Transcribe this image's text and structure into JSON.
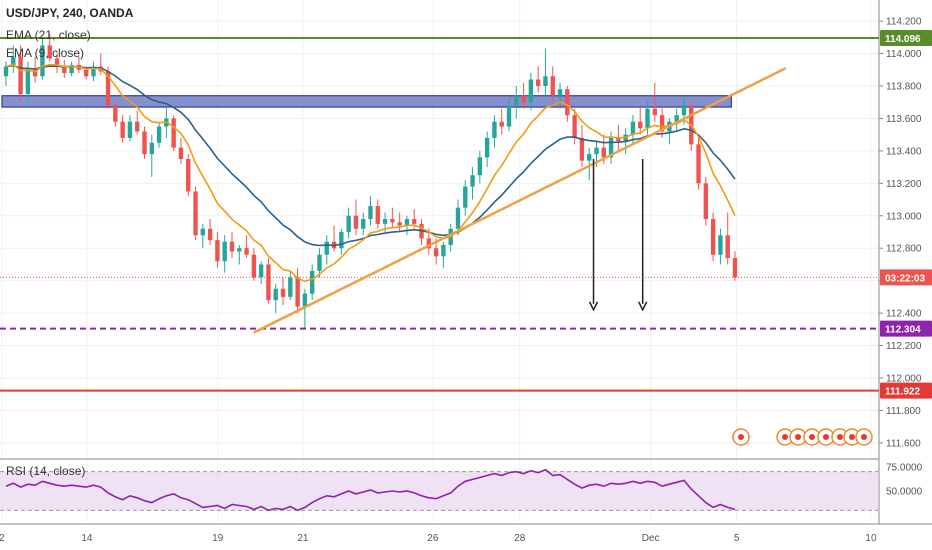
{
  "header": {
    "symbol_line": "USD/JPY, 240, OANDA",
    "ema21_label": "EMA (21, close)",
    "ema9_label": "EMA (9, close)",
    "rsi_label": "RSI (14, close)"
  },
  "colors": {
    "bull": "#26a69a",
    "bear": "#ef5350",
    "ema21": "#2c5f8a",
    "ema9": "#f39c12",
    "resistance_line": "#5b8c2a",
    "support_purple": "#8e24aa",
    "support_red": "#e53935",
    "trendline": "#f0a040",
    "box_fill": "#5c6bc0",
    "rsi_line": "#8e24aa",
    "rsi_band": "#e8d5f0"
  },
  "chart_data": {
    "type": "candlestick",
    "instrument": "USD/JPY",
    "timeframe": "240",
    "source": "OANDA",
    "ylim": [
      111.55,
      114.25
    ],
    "y_ticks": [
      "114.200",
      "114.000",
      "113.800",
      "113.600",
      "113.400",
      "113.200",
      "113.000",
      "112.800",
      "112.600",
      "112.400",
      "112.200",
      "112.000",
      "111.800",
      "111.600"
    ],
    "x_ticks": [
      "2",
      "14",
      "19",
      "21",
      "26",
      "28",
      "Dec",
      "5",
      "10"
    ],
    "price_tags": [
      {
        "label": "114.096",
        "value": 114.096,
        "color": "#5b8c2a"
      },
      {
        "label": "03:22:03",
        "value": 112.62,
        "color": "#ef5350"
      },
      {
        "label": "112.304",
        "value": 112.304,
        "color": "#8e24aa"
      },
      {
        "label": "111.922",
        "value": 111.922,
        "color": "#e53935"
      }
    ],
    "horizontal_lines": [
      {
        "value": 114.096,
        "style": "solid",
        "color": "#5b8c2a"
      },
      {
        "value": 112.304,
        "style": "dashed",
        "color": "#8e24aa"
      },
      {
        "value": 111.922,
        "style": "solid",
        "color": "#e53935"
      },
      {
        "value": 112.62,
        "style": "dotted",
        "color": "#ef5350"
      }
    ],
    "resistance_box": {
      "from": 113.67,
      "to": 113.74
    },
    "trendline": {
      "start": {
        "x": 0.289,
        "y": 112.28
      },
      "end": {
        "x": 0.895,
        "y": 113.91
      }
    },
    "arrows": [
      {
        "x": 0.676,
        "from": 113.35,
        "to": 112.42
      },
      {
        "x": 0.732,
        "from": 113.35,
        "to": 112.42
      }
    ],
    "candles": [
      [
        113.86,
        113.95,
        113.8,
        113.92
      ],
      [
        113.92,
        114.05,
        113.88,
        113.98
      ],
      [
        113.98,
        114.05,
        113.7,
        113.75
      ],
      [
        113.75,
        113.95,
        113.72,
        113.9
      ],
      [
        113.9,
        113.98,
        113.82,
        113.86
      ],
      [
        113.86,
        114.1,
        113.84,
        114.05
      ],
      [
        114.05,
        114.12,
        113.95,
        113.97
      ],
      [
        113.97,
        114.0,
        113.88,
        113.92
      ],
      [
        113.92,
        113.96,
        113.85,
        113.88
      ],
      [
        113.88,
        113.95,
        113.86,
        113.93
      ],
      [
        113.93,
        113.98,
        113.88,
        113.9
      ],
      [
        113.9,
        113.92,
        113.84,
        113.86
      ],
      [
        113.86,
        113.95,
        113.83,
        113.92
      ],
      [
        113.92,
        114.0,
        113.87,
        113.89
      ],
      [
        113.89,
        113.92,
        113.66,
        113.68
      ],
      [
        113.68,
        113.7,
        113.55,
        113.58
      ],
      [
        113.58,
        113.62,
        113.45,
        113.48
      ],
      [
        113.48,
        113.62,
        113.46,
        113.58
      ],
      [
        113.58,
        113.65,
        113.5,
        113.52
      ],
      [
        113.52,
        113.55,
        113.35,
        113.38
      ],
      [
        113.38,
        113.5,
        113.24,
        113.45
      ],
      [
        113.45,
        113.58,
        113.42,
        113.55
      ],
      [
        113.55,
        113.68,
        113.48,
        113.6
      ],
      [
        113.6,
        113.62,
        113.4,
        113.42
      ],
      [
        113.42,
        113.48,
        113.32,
        113.35
      ],
      [
        113.35,
        113.38,
        113.12,
        113.15
      ],
      [
        113.15,
        113.18,
        112.85,
        112.88
      ],
      [
        112.88,
        112.95,
        112.8,
        112.92
      ],
      [
        112.92,
        112.98,
        112.82,
        112.85
      ],
      [
        112.85,
        112.9,
        112.68,
        112.72
      ],
      [
        112.72,
        112.88,
        112.65,
        112.84
      ],
      [
        112.84,
        112.9,
        112.74,
        112.78
      ],
      [
        112.78,
        112.82,
        112.7,
        112.8
      ],
      [
        112.8,
        112.88,
        112.74,
        112.76
      ],
      [
        112.76,
        112.8,
        112.6,
        112.62
      ],
      [
        112.62,
        112.72,
        112.58,
        112.7
      ],
      [
        112.7,
        112.74,
        112.46,
        112.48
      ],
      [
        112.48,
        112.58,
        112.4,
        112.55
      ],
      [
        112.55,
        112.62,
        112.45,
        112.5
      ],
      [
        112.5,
        112.66,
        112.48,
        112.62
      ],
      [
        112.62,
        112.68,
        112.4,
        112.44
      ],
      [
        112.44,
        112.55,
        112.3,
        112.52
      ],
      [
        112.52,
        112.7,
        112.48,
        112.66
      ],
      [
        112.66,
        112.8,
        112.62,
        112.76
      ],
      [
        112.76,
        112.88,
        112.7,
        112.84
      ],
      [
        112.84,
        112.94,
        112.78,
        112.8
      ],
      [
        112.8,
        112.92,
        112.76,
        112.9
      ],
      [
        112.9,
        113.05,
        112.86,
        113.0
      ],
      [
        113.0,
        113.1,
        112.88,
        112.92
      ],
      [
        112.92,
        113.02,
        112.88,
        112.98
      ],
      [
        112.98,
        113.12,
        112.94,
        113.06
      ],
      [
        113.06,
        113.1,
        112.92,
        112.95
      ],
      [
        112.95,
        113.02,
        112.9,
        112.98
      ],
      [
        112.98,
        113.05,
        112.92,
        112.96
      ],
      [
        112.96,
        113.02,
        112.9,
        112.94
      ],
      [
        112.94,
        113.0,
        112.88,
        112.98
      ],
      [
        112.98,
        113.04,
        112.92,
        112.95
      ],
      [
        112.95,
        112.98,
        112.82,
        112.86
      ],
      [
        112.86,
        112.92,
        112.76,
        112.8
      ],
      [
        112.8,
        112.86,
        112.7,
        112.75
      ],
      [
        112.75,
        112.84,
        112.68,
        112.82
      ],
      [
        112.82,
        112.95,
        112.78,
        112.92
      ],
      [
        112.92,
        113.1,
        112.88,
        113.05
      ],
      [
        113.05,
        113.22,
        113.0,
        113.18
      ],
      [
        113.18,
        113.3,
        113.1,
        113.25
      ],
      [
        113.25,
        113.4,
        113.2,
        113.36
      ],
      [
        113.36,
        113.52,
        113.3,
        113.48
      ],
      [
        113.48,
        113.62,
        113.42,
        113.58
      ],
      [
        113.58,
        113.66,
        113.5,
        113.55
      ],
      [
        113.55,
        113.72,
        113.52,
        113.68
      ],
      [
        113.68,
        113.8,
        113.6,
        113.74
      ],
      [
        113.74,
        113.82,
        113.66,
        113.7
      ],
      [
        113.7,
        113.88,
        113.65,
        113.84
      ],
      [
        113.84,
        113.92,
        113.76,
        113.8
      ],
      [
        113.8,
        114.03,
        113.74,
        113.86
      ],
      [
        113.86,
        113.92,
        113.7,
        113.74
      ],
      [
        113.74,
        113.82,
        113.66,
        113.78
      ],
      [
        113.78,
        113.8,
        113.58,
        113.62
      ],
      [
        113.62,
        113.66,
        113.44,
        113.48
      ],
      [
        113.48,
        113.56,
        113.3,
        113.34
      ],
      [
        113.34,
        113.42,
        113.22,
        113.38
      ],
      [
        113.38,
        113.46,
        113.3,
        113.42
      ],
      [
        113.42,
        113.5,
        113.32,
        113.36
      ],
      [
        113.36,
        113.52,
        113.32,
        113.48
      ],
      [
        113.48,
        113.56,
        113.4,
        113.46
      ],
      [
        113.46,
        113.54,
        113.38,
        113.5
      ],
      [
        113.5,
        113.62,
        113.44,
        113.58
      ],
      [
        113.58,
        113.68,
        113.5,
        113.54
      ],
      [
        113.54,
        113.7,
        113.5,
        113.66
      ],
      [
        113.66,
        113.82,
        113.58,
        113.62
      ],
      [
        113.62,
        113.68,
        113.48,
        113.52
      ],
      [
        113.52,
        113.6,
        113.44,
        113.58
      ],
      [
        113.58,
        113.66,
        113.52,
        113.62
      ],
      [
        113.62,
        113.72,
        113.56,
        113.68
      ],
      [
        113.68,
        113.7,
        113.4,
        113.44
      ],
      [
        113.44,
        113.48,
        113.16,
        113.2
      ],
      [
        113.2,
        113.24,
        112.94,
        112.98
      ],
      [
        112.98,
        113.02,
        112.72,
        112.76
      ],
      [
        112.76,
        112.92,
        112.7,
        112.88
      ],
      [
        112.88,
        113.02,
        112.7,
        112.74
      ],
      [
        112.74,
        112.78,
        112.6,
        112.62
      ]
    ],
    "rsi": {
      "ylim": [
        20,
        80
      ],
      "ticks": [
        "75.0000",
        "50.0000"
      ],
      "band": [
        30,
        70
      ],
      "values": [
        55,
        58,
        54,
        57,
        56,
        60,
        58,
        56,
        55,
        56,
        55,
        54,
        56,
        54,
        48,
        44,
        41,
        45,
        43,
        40,
        38,
        42,
        45,
        47,
        43,
        41,
        37,
        33,
        34,
        35,
        32,
        36,
        35,
        34,
        31,
        34,
        30,
        32,
        31,
        34,
        30,
        33,
        38,
        42,
        45,
        44,
        47,
        50,
        47,
        49,
        51,
        48,
        49,
        50,
        49,
        50,
        48,
        45,
        43,
        42,
        45,
        48,
        55,
        60,
        62,
        64,
        66,
        68,
        66,
        69,
        70,
        68,
        71,
        69,
        72,
        66,
        67,
        62,
        57,
        53,
        56,
        57,
        55,
        58,
        57,
        58,
        60,
        58,
        60,
        59,
        55,
        57,
        59,
        61,
        52,
        45,
        38,
        33,
        36,
        33,
        31
      ]
    }
  }
}
